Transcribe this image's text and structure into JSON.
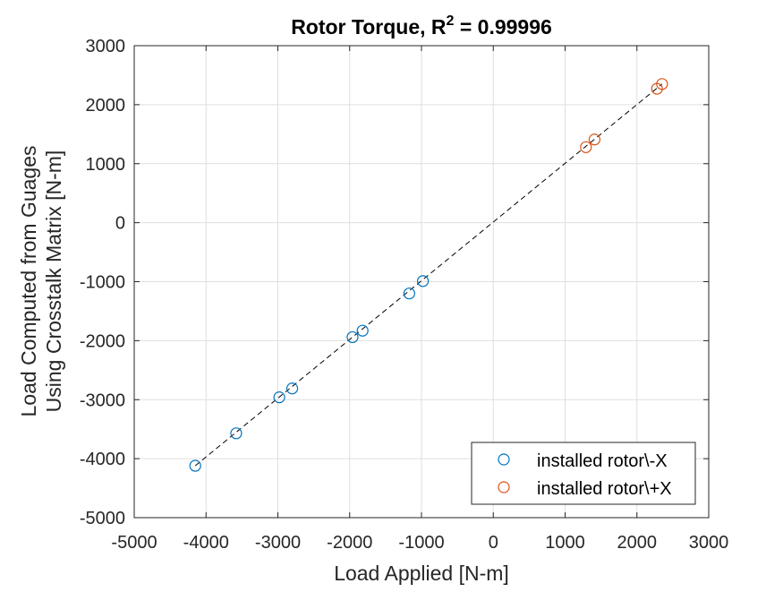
{
  "chart_data": {
    "type": "scatter",
    "title_main": "Rotor Torque, R",
    "title_sup": "2",
    "title_tail": " = 0.99996",
    "xlabel": "Load Applied [N-m]",
    "ylabel_line1": "Load Computed from Guages",
    "ylabel_line2": "Using Crosstalk Matrix [N-m]",
    "xlim": [
      -5000,
      3000
    ],
    "ylim": [
      -5000,
      3000
    ],
    "xticks": [
      -5000,
      -4000,
      -3000,
      -2000,
      -1000,
      0,
      1000,
      2000,
      3000
    ],
    "yticks": [
      -5000,
      -4000,
      -3000,
      -2000,
      -1000,
      0,
      1000,
      2000,
      3000
    ],
    "grid": true,
    "legend_position": "bottom-right",
    "fit_line": {
      "from": [
        -4150,
        -4120
      ],
      "to": [
        2350,
        2350
      ],
      "color": "#000000",
      "style": "dashed"
    },
    "series": [
      {
        "name": "installed rotor\\-X",
        "color": "#0072BD",
        "marker": "circle-open",
        "points": [
          [
            -4150,
            -4120
          ],
          [
            -3580,
            -3570
          ],
          [
            -2980,
            -2960
          ],
          [
            -2800,
            -2810
          ],
          [
            -1960,
            -1940
          ],
          [
            -1820,
            -1830
          ],
          [
            -1170,
            -1200
          ],
          [
            -980,
            -990
          ]
        ]
      },
      {
        "name": "installed rotor\\+X",
        "color": "#D95319",
        "marker": "circle-open",
        "points": [
          [
            1290,
            1280
          ],
          [
            1410,
            1410
          ],
          [
            2280,
            2270
          ],
          [
            2350,
            2350
          ]
        ]
      }
    ]
  }
}
